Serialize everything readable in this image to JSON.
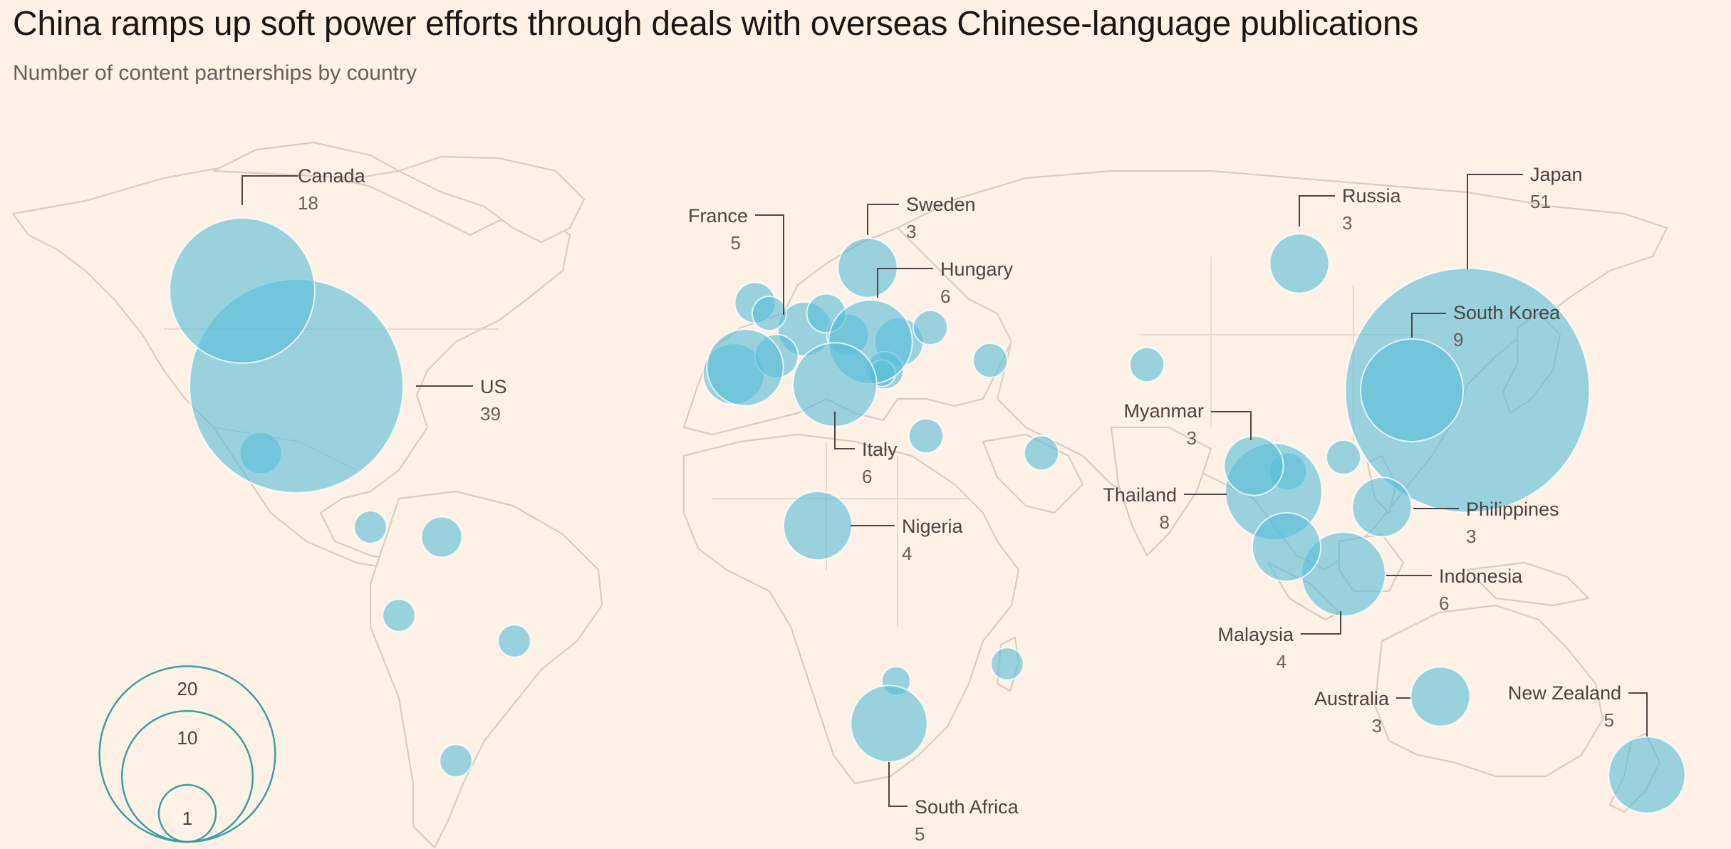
{
  "header": {
    "title": "China ramps up soft power efforts through deals with overseas Chinese-language publications",
    "subtitle": "Number of content partnerships by country"
  },
  "colors": {
    "background": "#fff1e5",
    "bubble": "#5bbdd9",
    "land_outline": "#d8cdbf",
    "legend": "#3aa0a3"
  },
  "legend": {
    "values": [
      20,
      10,
      1
    ],
    "labels": [
      "20",
      "10",
      "1"
    ]
  },
  "labeled_countries": [
    {
      "name": "Canada",
      "value": 18
    },
    {
      "name": "US",
      "value": 39
    },
    {
      "name": "France",
      "value": 5
    },
    {
      "name": "Sweden",
      "value": 3
    },
    {
      "name": "Hungary",
      "value": 6
    },
    {
      "name": "Italy",
      "value": 6
    },
    {
      "name": "Nigeria",
      "value": 4
    },
    {
      "name": "South Africa",
      "value": 5
    },
    {
      "name": "Russia",
      "value": 3
    },
    {
      "name": "Japan",
      "value": 51
    },
    {
      "name": "South Korea",
      "value": 9
    },
    {
      "name": "Myanmar",
      "value": 3
    },
    {
      "name": "Thailand",
      "value": 8
    },
    {
      "name": "Philippines",
      "value": 3
    },
    {
      "name": "Indonesia",
      "value": 6
    },
    {
      "name": "Malaysia",
      "value": 4
    },
    {
      "name": "Australia",
      "value": 3
    },
    {
      "name": "New Zealand",
      "value": 5
    }
  ]
}
